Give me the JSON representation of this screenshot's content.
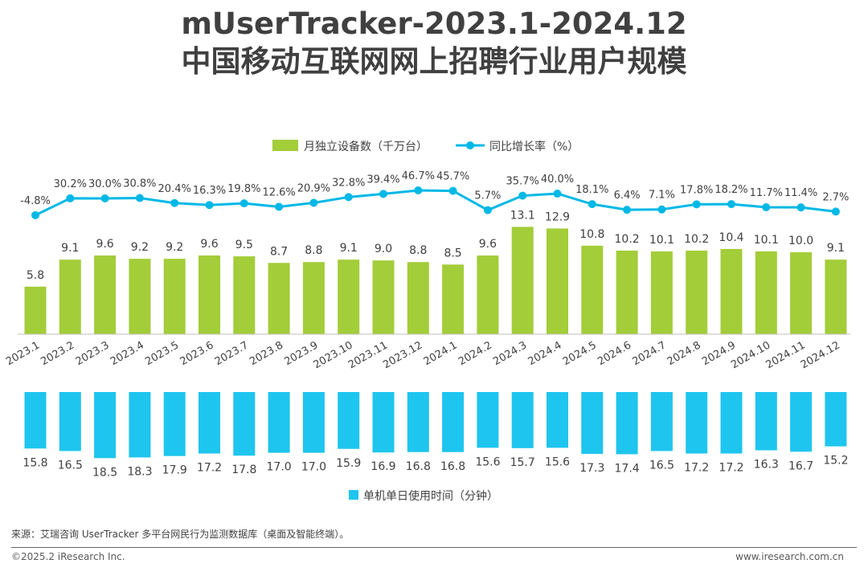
{
  "title_line1": "mUserTracker-2023.1-2024.12",
  "title_line2": "中国移动互联网网上招聘行业用户规模",
  "legend": {
    "bar": "月独立设备数（千万台）",
    "line": "同比增长率（%）",
    "time": "单机单日使用时间（分钟）"
  },
  "source": "来源：艾瑞咨询 UserTracker 多平台网民行为监测数据库（桌面及智能终端）。",
  "copyright": "©2025.2 iResearch Inc.",
  "website": "www.iresearch.com.cn",
  "colors": {
    "bar": "#A3CD39",
    "line": "#00B8E6",
    "time_bar": "#1EC5EE",
    "text": "#404040"
  },
  "chart_data": {
    "type": "bar",
    "categories": [
      "2023.1",
      "2023.2",
      "2023.3",
      "2023.4",
      "2023.5",
      "2023.6",
      "2023.7",
      "2023.8",
      "2023.9",
      "2023.10",
      "2023.11",
      "2023.12",
      "2024.1",
      "2024.2",
      "2024.3",
      "2024.4",
      "2024.5",
      "2024.6",
      "2024.7",
      "2024.8",
      "2024.9",
      "2024.10",
      "2024.11",
      "2024.12"
    ],
    "series": [
      {
        "name": "月独立设备数（千万台）",
        "type": "bar",
        "values": [
          5.8,
          9.1,
          9.6,
          9.2,
          9.2,
          9.6,
          9.5,
          8.7,
          8.8,
          9.1,
          9.0,
          8.8,
          8.5,
          9.6,
          13.1,
          12.9,
          10.8,
          10.2,
          10.1,
          10.2,
          10.4,
          10.1,
          10.0,
          9.1
        ],
        "labels": [
          "5.8",
          "9.1",
          "9.6",
          "9.2",
          "9.2",
          "9.6",
          "9.5",
          "8.7",
          "8.8",
          "9.1",
          "9.0",
          "8.8",
          "8.5",
          "9.6",
          "13.1",
          "12.9",
          "10.8",
          "10.2",
          "10.1",
          "10.2",
          "10.4",
          "10.1",
          "10.0",
          "9.1"
        ]
      },
      {
        "name": "同比增长率（%）",
        "type": "line",
        "values": [
          -4.8,
          30.2,
          30.0,
          30.8,
          20.4,
          16.3,
          19.8,
          12.6,
          20.9,
          32.8,
          39.4,
          46.7,
          45.7,
          5.7,
          35.7,
          40.0,
          18.1,
          6.4,
          7.1,
          17.8,
          18.2,
          11.7,
          11.4,
          2.7
        ],
        "labels": [
          "-4.8%",
          "30.2%",
          "30.0%",
          "30.8%",
          "20.4%",
          "16.3%",
          "19.8%",
          "12.6%",
          "20.9%",
          "32.8%",
          "39.4%",
          "46.7%",
          "45.7%",
          "5.7%",
          "35.7%",
          "40.0%",
          "18.1%",
          "6.4%",
          "7.1%",
          "17.8%",
          "18.2%",
          "11.7%",
          "11.4%",
          "2.7%"
        ]
      },
      {
        "name": "单机单日使用时间（分钟）",
        "type": "bar",
        "values": [
          15.8,
          16.5,
          18.5,
          18.3,
          17.9,
          17.2,
          17.8,
          17.0,
          17.0,
          15.9,
          16.9,
          16.8,
          16.8,
          15.6,
          15.7,
          15.6,
          17.3,
          17.4,
          16.5,
          17.2,
          17.2,
          16.3,
          16.7,
          15.2
        ],
        "labels": [
          "15.8",
          "16.5",
          "18.5",
          "18.3",
          "17.9",
          "17.2",
          "17.8",
          "17.0",
          "17.0",
          "15.9",
          "16.9",
          "16.8",
          "16.8",
          "15.6",
          "15.7",
          "15.6",
          "17.3",
          "17.4",
          "16.5",
          "17.2",
          "17.2",
          "16.3",
          "16.7",
          "15.2"
        ]
      }
    ]
  }
}
